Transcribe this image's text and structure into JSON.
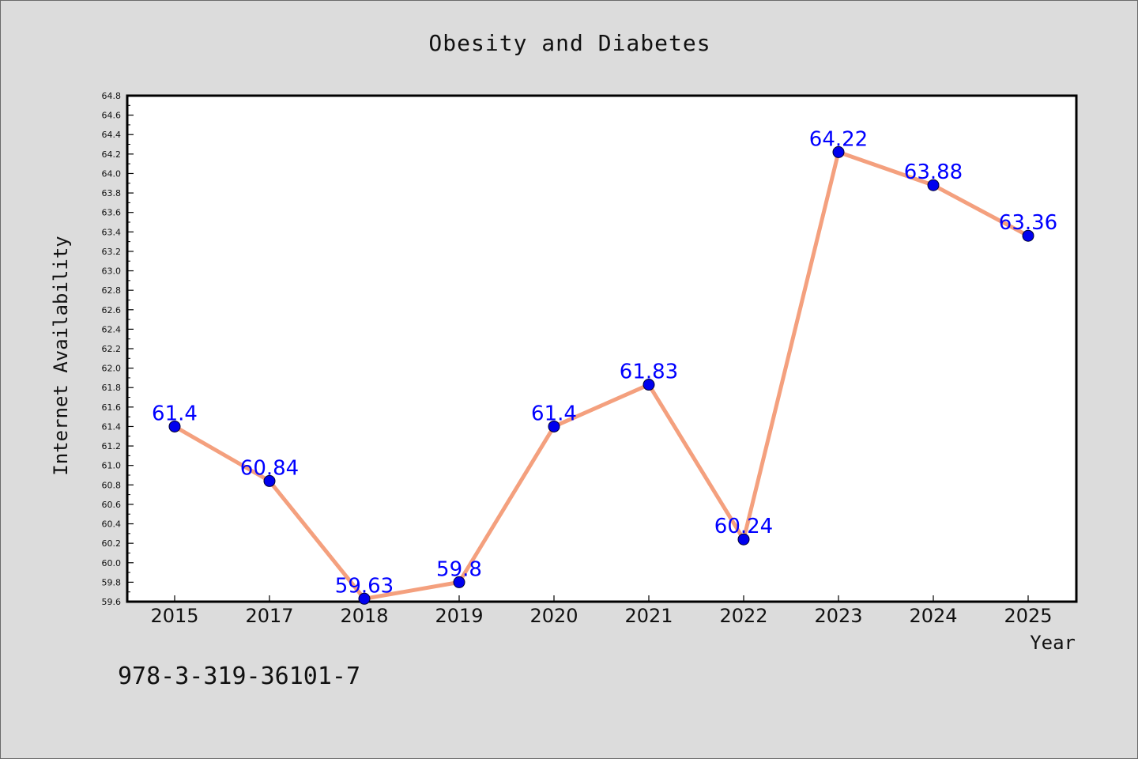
{
  "chart_data": {
    "type": "line",
    "title": "Obesity and Diabetes",
    "xlabel": "Year",
    "ylabel": "Internet Availability",
    "categories": [
      "2015",
      "2017",
      "2018",
      "2019",
      "2020",
      "2021",
      "2022",
      "2023",
      "2024",
      "2025"
    ],
    "series": [
      {
        "values": [
          61.4,
          60.84,
          59.63,
          59.8,
          61.4,
          61.83,
          60.24,
          64.22,
          63.88,
          63.36
        ],
        "data_labels": [
          "61.4",
          "60.84",
          "59.63",
          "59.8",
          "61.4",
          "61.83",
          "60.24",
          "64.22",
          "63.88",
          "63.36"
        ]
      }
    ],
    "ylim": [
      59.6,
      64.8
    ],
    "yticks": [
      "59.6",
      "59.8",
      "60.0",
      "60.2",
      "60.4",
      "60.6",
      "60.8",
      "61.0",
      "61.2",
      "61.4",
      "61.6",
      "61.8",
      "62.0",
      "62.2",
      "62.4",
      "62.6",
      "62.8",
      "63.0",
      "63.2",
      "63.4",
      "63.6",
      "63.8",
      "64.0",
      "64.2",
      "64.4",
      "64.6",
      "64.8"
    ],
    "grid": false,
    "legend": "none",
    "colors": {
      "line": "#f4a07e",
      "marker": "#0000ee",
      "data_label": "#0000ff",
      "plot_background": "#ffffff",
      "figure_background": "#dcdcdc"
    }
  },
  "footnote": "978-3-319-36101-7"
}
